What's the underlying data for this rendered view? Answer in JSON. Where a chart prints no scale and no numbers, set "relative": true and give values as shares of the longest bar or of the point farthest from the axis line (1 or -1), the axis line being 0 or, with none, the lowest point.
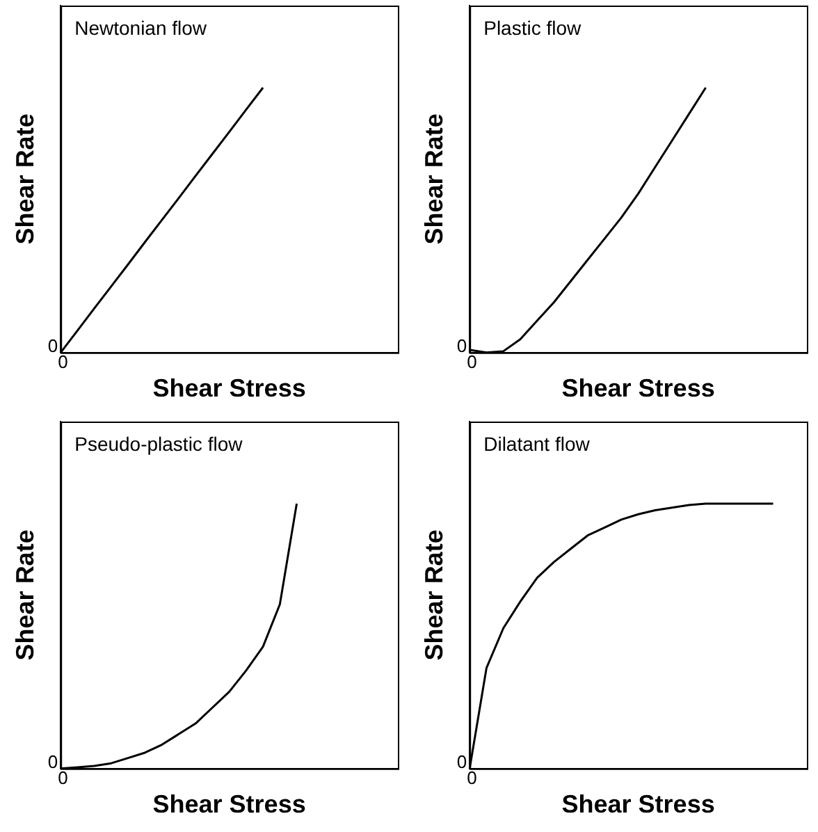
{
  "chart_data": [
    {
      "type": "line",
      "title": "Newtonian flow",
      "xlabel": "Shear Stress",
      "ylabel": "Shear Rate",
      "relative": true,
      "annotations": [
        "0",
        "0"
      ],
      "marker": "none",
      "legend": false,
      "grid": false,
      "categories": [
        null,
        null,
        null,
        null,
        null,
        null,
        null,
        null,
        null,
        null,
        null,
        null,
        null,
        null,
        null,
        null,
        null,
        null,
        null,
        null,
        null
      ],
      "series": [
        {
          "color": "#000000",
          "values": [
            0,
            0.083,
            0.167,
            0.25,
            0.333,
            0.417,
            0.5,
            0.583,
            0.667,
            0.75,
            0.833,
            0.917,
            1,
            null,
            null,
            null,
            null,
            null,
            null,
            null,
            null
          ]
        }
      ]
    },
    {
      "type": "line",
      "title": "Plastic flow",
      "xlabel": "Shear Stress",
      "ylabel": "Shear Rate",
      "relative": true,
      "annotations": [
        "0",
        "0"
      ],
      "marker": "none",
      "legend": false,
      "grid": false,
      "categories": [
        null,
        null,
        null,
        null,
        null,
        null,
        null,
        null,
        null,
        null,
        null,
        null,
        null,
        null,
        null,
        null,
        null,
        null,
        null,
        null,
        null
      ],
      "series": [
        {
          "color": "#000000",
          "values": [
            0.01,
            0,
            0.005,
            0.05,
            0.12,
            0.19,
            0.27,
            0.35,
            0.43,
            0.51,
            0.6,
            0.7,
            0.8,
            0.9,
            1,
            null,
            null,
            null,
            null,
            null,
            null
          ]
        }
      ]
    },
    {
      "type": "line",
      "title": "Pseudo-plastic flow",
      "xlabel": "Shear Stress",
      "ylabel": "Shear Rate",
      "relative": true,
      "annotations": [
        "0",
        "0"
      ],
      "marker": "none",
      "legend": false,
      "grid": false,
      "categories": [
        null,
        null,
        null,
        null,
        null,
        null,
        null,
        null,
        null,
        null,
        null,
        null,
        null,
        null,
        null,
        null,
        null,
        null,
        null,
        null,
        null
      ],
      "series": [
        {
          "color": "#000000",
          "values": [
            0,
            0.005,
            0.01,
            0.02,
            0.04,
            0.06,
            0.09,
            0.13,
            0.17,
            0.23,
            0.29,
            0.37,
            0.46,
            0.62,
            1,
            null,
            null,
            null,
            null,
            null,
            null
          ]
        }
      ]
    },
    {
      "type": "line",
      "title": "Dilatant flow",
      "xlabel": "Shear Stress",
      "ylabel": "Shear Rate",
      "relative": true,
      "annotations": [
        "0",
        "0"
      ],
      "marker": "none",
      "legend": false,
      "grid": false,
      "categories": [
        null,
        null,
        null,
        null,
        null,
        null,
        null,
        null,
        null,
        null,
        null,
        null,
        null,
        null,
        null,
        null,
        null,
        null,
        null,
        null,
        null
      ],
      "series": [
        {
          "color": "#000000",
          "values": [
            0,
            0.38,
            0.53,
            0.63,
            0.72,
            0.78,
            0.83,
            0.88,
            0.91,
            0.94,
            0.96,
            0.975,
            0.985,
            0.995,
            1,
            1,
            1,
            1,
            1,
            null,
            null
          ]
        }
      ]
    }
  ]
}
